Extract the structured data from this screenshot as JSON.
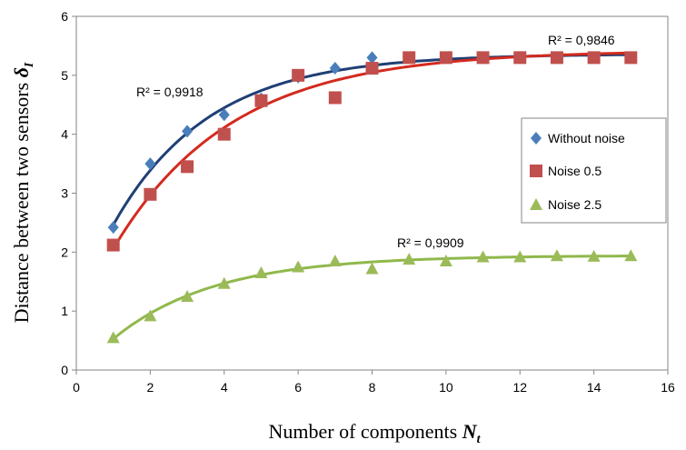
{
  "chart_data": {
    "type": "scatter",
    "xlabel": "Number of components",
    "xlabel_symbol": "N",
    "xlabel_sub": "t",
    "ylabel": "Distance between two sensors",
    "ylabel_symbol": "δ",
    "ylabel_sub": "I",
    "xlim": [
      0,
      16
    ],
    "ylim": [
      0,
      6
    ],
    "xticks": [
      "0",
      "2",
      "4",
      "6",
      "8",
      "10",
      "12",
      "14",
      "16"
    ],
    "yticks": [
      "0",
      "1",
      "2",
      "3",
      "4",
      "5",
      "6"
    ],
    "grid": false,
    "legend_position": "right",
    "series": [
      {
        "name": "Without noise",
        "marker": "diamond",
        "color": "#4a7ebb",
        "trend_color": "#1f3f75",
        "r_squared": "R² = 0,9918",
        "x": [
          1,
          2,
          3,
          4,
          5,
          6,
          7,
          8,
          9,
          10,
          11,
          12,
          13,
          14,
          15
        ],
        "y": [
          2.42,
          3.5,
          4.05,
          4.33,
          4.6,
          4.97,
          5.12,
          5.3,
          5.3,
          5.3,
          5.3,
          5.3,
          5.3,
          5.3,
          5.3
        ]
      },
      {
        "name": "Noise 0.5",
        "marker": "square",
        "color": "#c0504d",
        "trend_color": "#d42a1e",
        "r_squared": "R² = 0,9846",
        "x": [
          1,
          2,
          3,
          4,
          5,
          6,
          7,
          8,
          9,
          10,
          11,
          12,
          13,
          14,
          15
        ],
        "y": [
          2.12,
          2.98,
          3.45,
          4.0,
          4.57,
          5.0,
          4.62,
          5.12,
          5.3,
          5.3,
          5.3,
          5.3,
          5.3,
          5.3,
          5.3
        ]
      },
      {
        "name": "Noise 2.5",
        "marker": "triangle",
        "color": "#9bbb59",
        "trend_color": "#8fb84b",
        "r_squared": "R² = 0,9909",
        "x": [
          1,
          2,
          3,
          4,
          5,
          6,
          7,
          8,
          9,
          10,
          11,
          12,
          13,
          14,
          15
        ],
        "y": [
          0.55,
          0.92,
          1.25,
          1.47,
          1.65,
          1.75,
          1.85,
          1.72,
          1.88,
          1.85,
          1.92,
          1.92,
          1.94,
          1.93,
          1.94
        ]
      }
    ]
  }
}
